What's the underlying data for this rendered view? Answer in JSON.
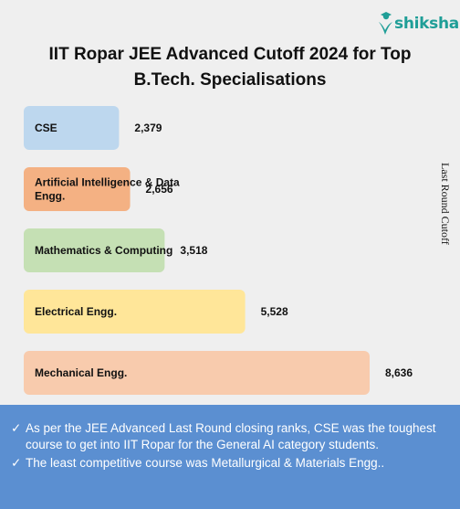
{
  "brand": {
    "name": "shiksha",
    "color": "#1f9e97"
  },
  "chart_data": {
    "type": "bar",
    "orientation": "horizontal",
    "title": "IIT Ropar JEE Advanced Cutoff 2024 for Top B.Tech. Specialisations",
    "ylabel": "Last Round Cutoff",
    "categories": [
      "CSE",
      "Artificial Intelligence & Data Engg.",
      "Mathematics & Computing",
      "Electrical Engg.",
      "Mechanical Engg."
    ],
    "values": [
      2379,
      2656,
      3518,
      5528,
      8636
    ],
    "value_labels": [
      "2,379",
      "2,656",
      "3,518",
      "5,528",
      "8,636"
    ],
    "colors": [
      "#bdd7ee",
      "#f4b183",
      "#c5e0b4",
      "#ffe699",
      "#f8cbad"
    ],
    "xlim": [
      0,
      8636
    ],
    "grid": false,
    "legend": "none"
  },
  "notes": {
    "check_icon": "check-mark-icon",
    "items": [
      "As per the JEE Advanced Last Round closing ranks, CSE was the toughest course to get into IIT Ropar for the General AI category students.",
      "The least competitive course was Metallurgical & Materials Engg.."
    ]
  }
}
